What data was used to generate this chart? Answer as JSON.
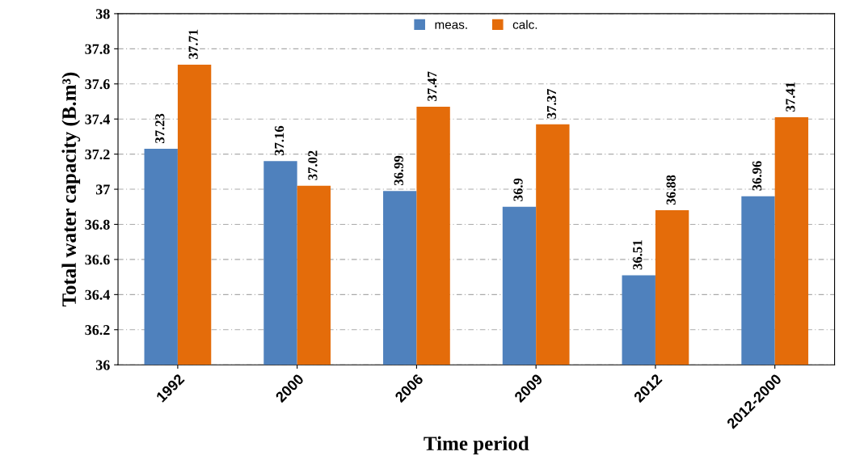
{
  "chart_data": {
    "type": "bar",
    "xlabel": "Time period",
    "ylabel": "Total water capacity (B.m³)",
    "categories": [
      "1992",
      "2000",
      "2006",
      "2009",
      "2012",
      "2012-2000"
    ],
    "series": [
      {
        "name": "meas.",
        "color": "#4f81bd",
        "values": [
          37.23,
          37.16,
          36.99,
          36.9,
          36.51,
          36.96
        ]
      },
      {
        "name": "calc.",
        "color": "#e46c0a",
        "values": [
          37.71,
          37.02,
          37.47,
          37.37,
          36.88,
          37.41
        ]
      }
    ],
    "ylim": [
      36,
      38
    ],
    "yticks": [
      36,
      36.2,
      36.4,
      36.6,
      36.8,
      37,
      37.2,
      37.4,
      37.6,
      37.8,
      38
    ],
    "grid": "y",
    "legend": "top",
    "data_labels": true
  }
}
